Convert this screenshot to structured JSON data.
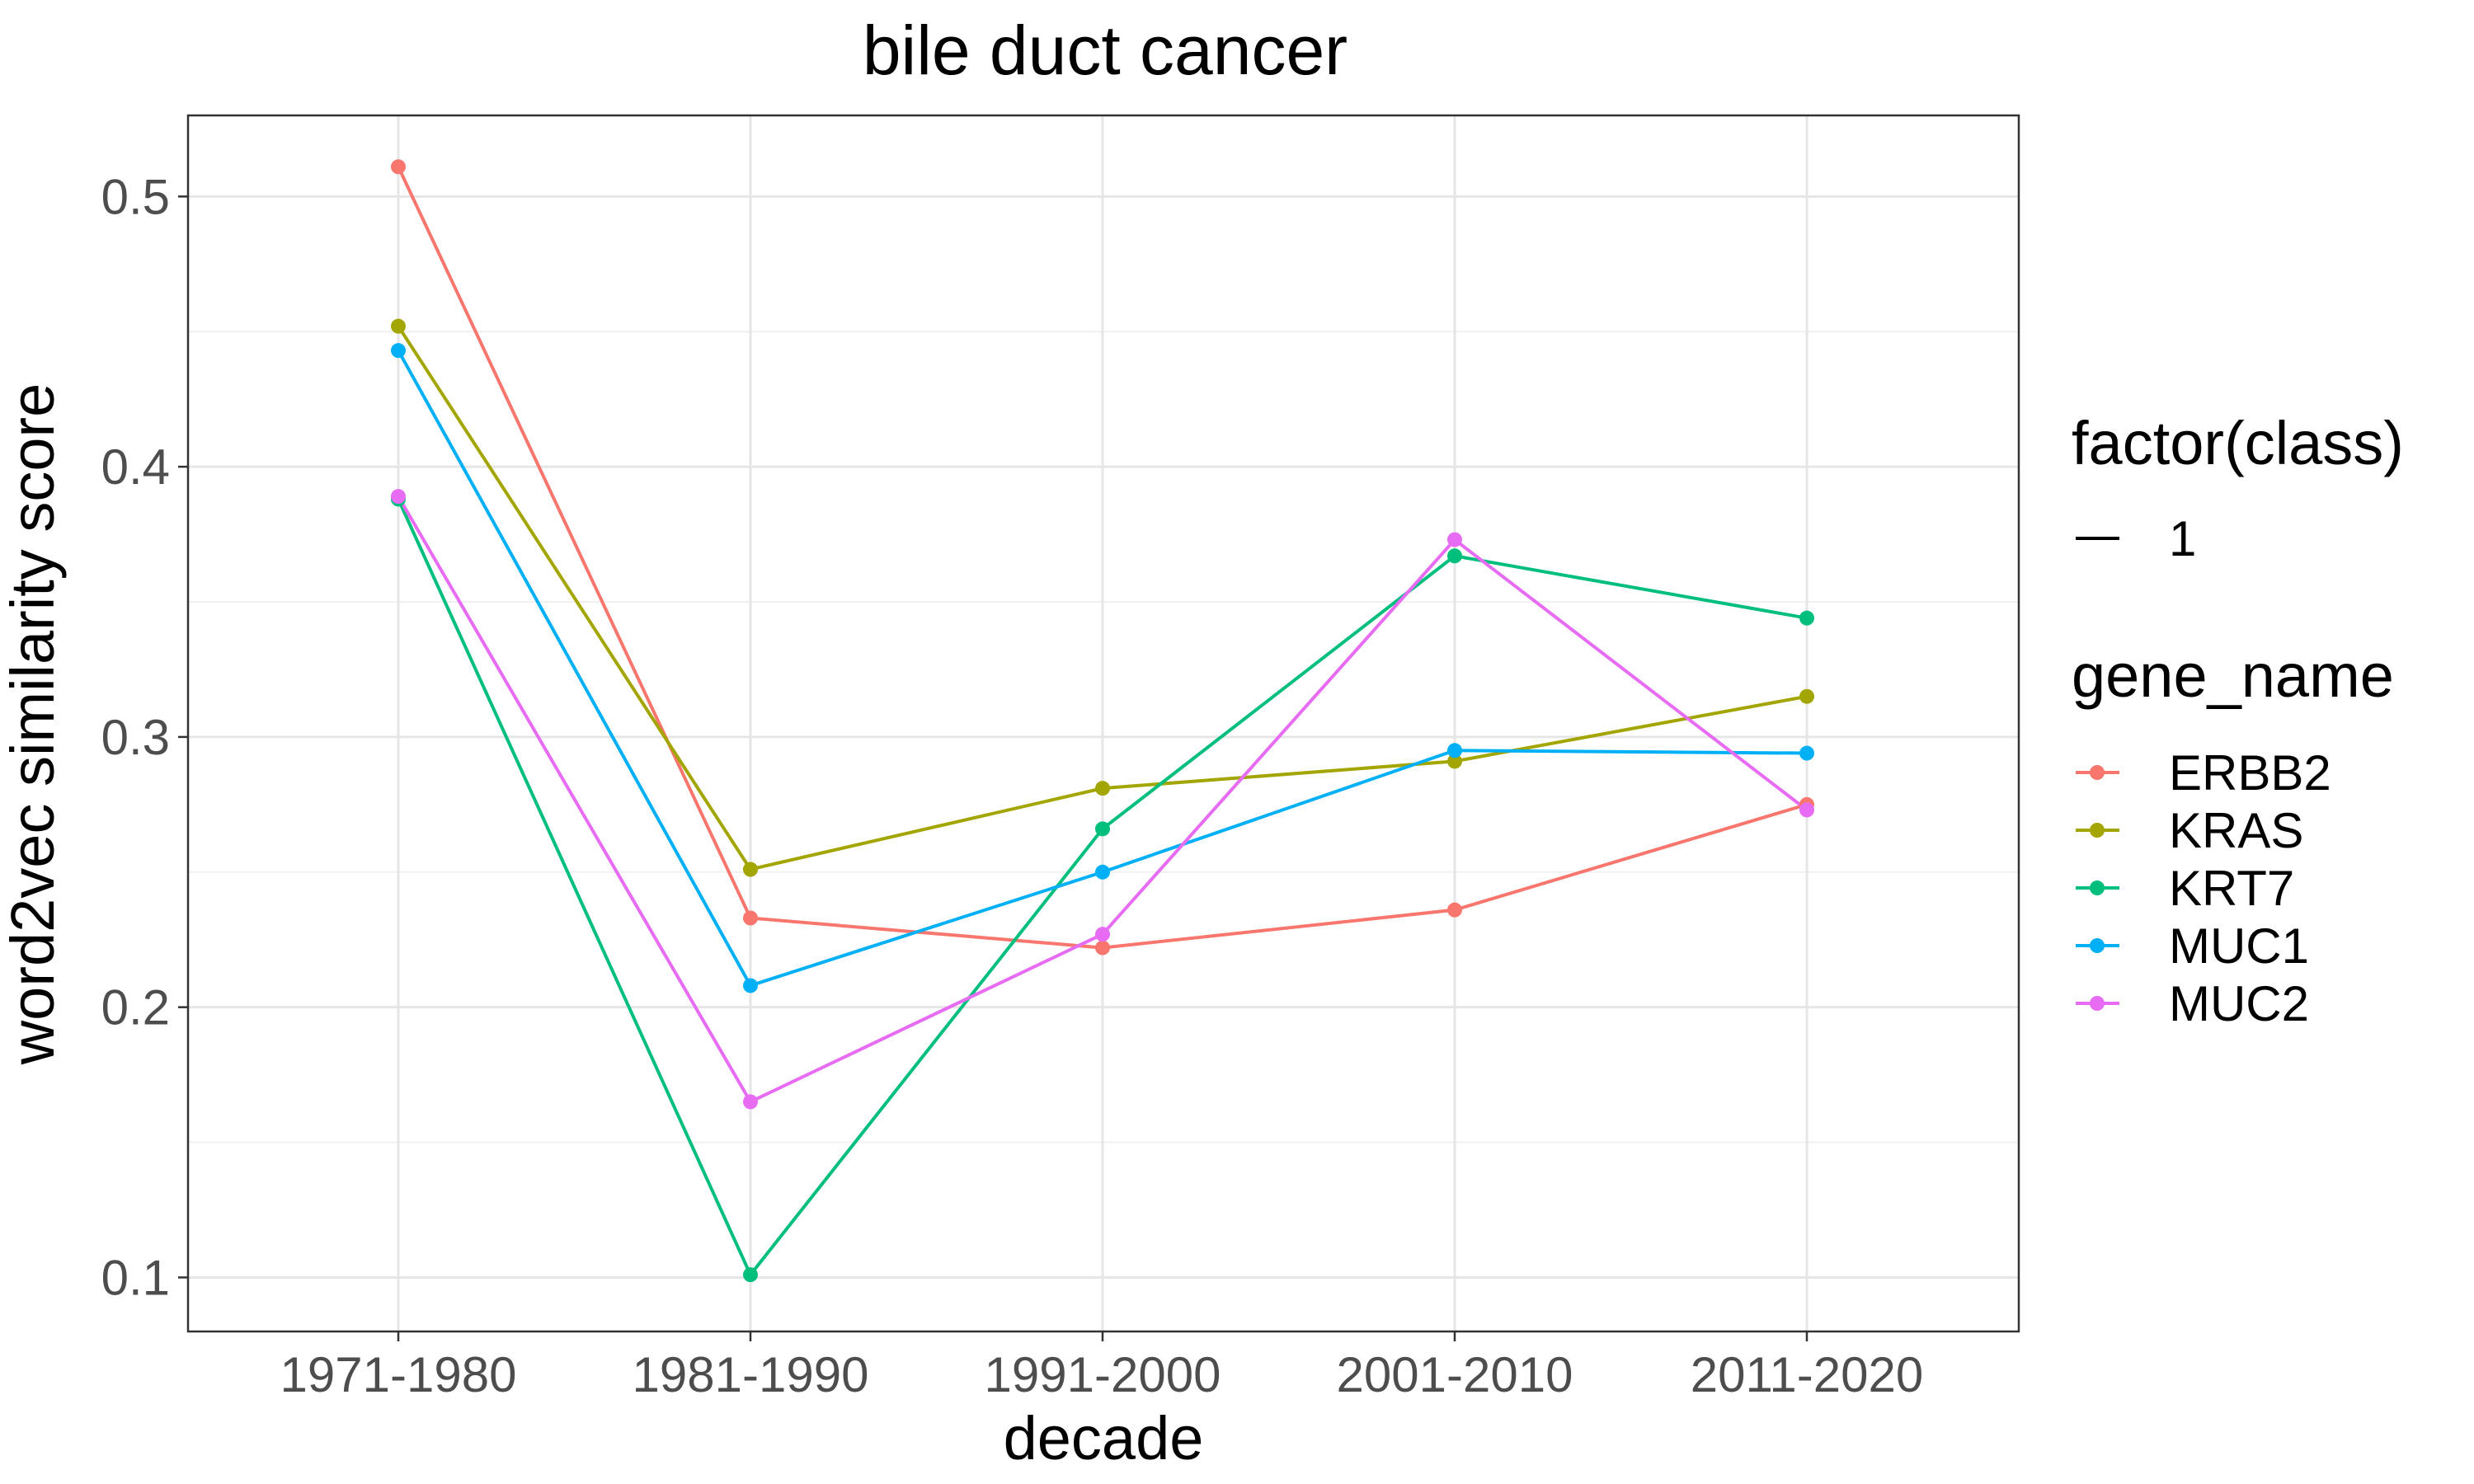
{
  "chart_data": {
    "type": "line",
    "title": "bile duct cancer",
    "xlabel": "decade",
    "ylabel": "word2vec similarity score",
    "categories": [
      "1971-1980",
      "1981-1990",
      "1991-2000",
      "2001-2010",
      "2011-2020"
    ],
    "yticks": [
      0.1,
      0.2,
      0.3,
      0.4,
      0.5
    ],
    "ylim": [
      0.08,
      0.53
    ],
    "grid": true,
    "legend_position": "right",
    "legends": [
      {
        "title": "factor(class)",
        "entries": [
          "1"
        ]
      },
      {
        "title": "gene_name",
        "entries": [
          "ERBB2",
          "KRAS",
          "KRT7",
          "MUC1",
          "MUC2"
        ]
      }
    ],
    "series": [
      {
        "name": "ERBB2",
        "color": "#F8766D",
        "values": [
          0.511,
          0.233,
          0.222,
          0.236,
          0.275
        ]
      },
      {
        "name": "KRAS",
        "color": "#A3A500",
        "values": [
          0.452,
          0.251,
          0.281,
          0.291,
          0.315
        ]
      },
      {
        "name": "KRT7",
        "color": "#00BF7D",
        "values": [
          0.388,
          0.101,
          0.266,
          0.367,
          0.344
        ]
      },
      {
        "name": "MUC1",
        "color": "#00B0F6",
        "values": [
          0.443,
          0.208,
          0.25,
          0.295,
          0.294
        ]
      },
      {
        "name": "MUC2",
        "color": "#E76BF3",
        "values": [
          0.389,
          0.165,
          0.227,
          0.373,
          0.273
        ]
      }
    ]
  }
}
